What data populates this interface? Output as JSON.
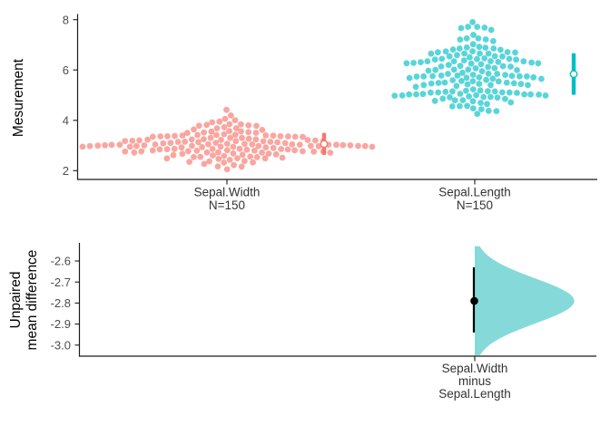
{
  "figure": {
    "background": "#ffffff",
    "axis_color": "#1a1a1a",
    "tick_label_color": "#4d4d4d"
  },
  "chart_data": [
    {
      "type": "scatter",
      "variant": "beeswarm",
      "panel": "top",
      "title": "",
      "ylabel": "Mesurement",
      "ylim": [
        1.95,
        8.3
      ],
      "yticks": [
        "8",
        "6",
        "4",
        "2"
      ],
      "ytick_values": [
        8,
        6,
        4,
        2
      ],
      "grid": false,
      "groups": [
        {
          "label": "Sepal.Width",
          "sublabel": "N=150",
          "n": 150,
          "dot_color": "#F8766D",
          "bar_color": "#F8766D",
          "mean": 3.06,
          "sd": 0.44,
          "bins": [
            [
              2.0,
              1
            ],
            [
              2.2,
              3
            ],
            [
              2.3,
              4
            ],
            [
              2.4,
              3
            ],
            [
              2.5,
              8
            ],
            [
              2.6,
              5
            ],
            [
              2.7,
              9
            ],
            [
              2.8,
              14
            ],
            [
              2.9,
              10
            ],
            [
              3.0,
              26
            ],
            [
              3.1,
              11
            ],
            [
              3.2,
              13
            ],
            [
              3.3,
              6
            ],
            [
              3.4,
              12
            ],
            [
              3.5,
              6
            ],
            [
              3.6,
              4
            ],
            [
              3.7,
              3
            ],
            [
              3.8,
              6
            ],
            [
              3.9,
              2
            ],
            [
              4.0,
              1
            ],
            [
              4.1,
              1
            ],
            [
              4.2,
              1
            ],
            [
              4.4,
              1
            ]
          ]
        },
        {
          "label": "Sepal.Length",
          "sublabel": "N=150",
          "n": 150,
          "dot_color": "#00BFC4",
          "bar_color": "#00BFC4",
          "mean": 5.84,
          "sd": 0.83,
          "bins": [
            [
              4.3,
              1
            ],
            [
              4.4,
              3
            ],
            [
              4.5,
              1
            ],
            [
              4.6,
              4
            ],
            [
              4.7,
              2
            ],
            [
              4.8,
              5
            ],
            [
              4.9,
              6
            ],
            [
              5.0,
              10
            ],
            [
              5.1,
              9
            ],
            [
              5.2,
              4
            ],
            [
              5.3,
              1
            ],
            [
              5.4,
              6
            ],
            [
              5.5,
              7
            ],
            [
              5.6,
              6
            ],
            [
              5.7,
              8
            ],
            [
              5.8,
              7
            ],
            [
              5.9,
              3
            ],
            [
              6.0,
              6
            ],
            [
              6.1,
              6
            ],
            [
              6.2,
              4
            ],
            [
              6.3,
              9
            ],
            [
              6.4,
              7
            ],
            [
              6.5,
              5
            ],
            [
              6.6,
              2
            ],
            [
              6.7,
              8
            ],
            [
              6.8,
              3
            ],
            [
              6.9,
              4
            ],
            [
              7.0,
              1
            ],
            [
              7.1,
              1
            ],
            [
              7.2,
              3
            ],
            [
              7.3,
              1
            ],
            [
              7.4,
              1
            ],
            [
              7.6,
              1
            ],
            [
              7.7,
              4
            ],
            [
              7.9,
              1
            ]
          ]
        }
      ]
    },
    {
      "type": "area",
      "variant": "half-violin-bootstrap",
      "panel": "bottom",
      "ylabel_line1": "Unpaired",
      "ylabel_line2": "mean difference",
      "yticks": [
        "-2.6",
        "-2.7",
        "-2.8",
        "-2.9",
        "-3.0"
      ],
      "ytick_values": [
        -2.6,
        -2.7,
        -2.8,
        -2.9,
        -3.0
      ],
      "ylim": [
        -3.05,
        -2.53
      ],
      "xlabel_line1": "Sepal.Width",
      "xlabel_line2": "minus",
      "xlabel_line3": "Sepal.Length",
      "mean_difference": -2.79,
      "ci_95": [
        -2.94,
        -2.63
      ],
      "violin_fill": "#85D9D9",
      "marker_color": "#000000"
    }
  ]
}
